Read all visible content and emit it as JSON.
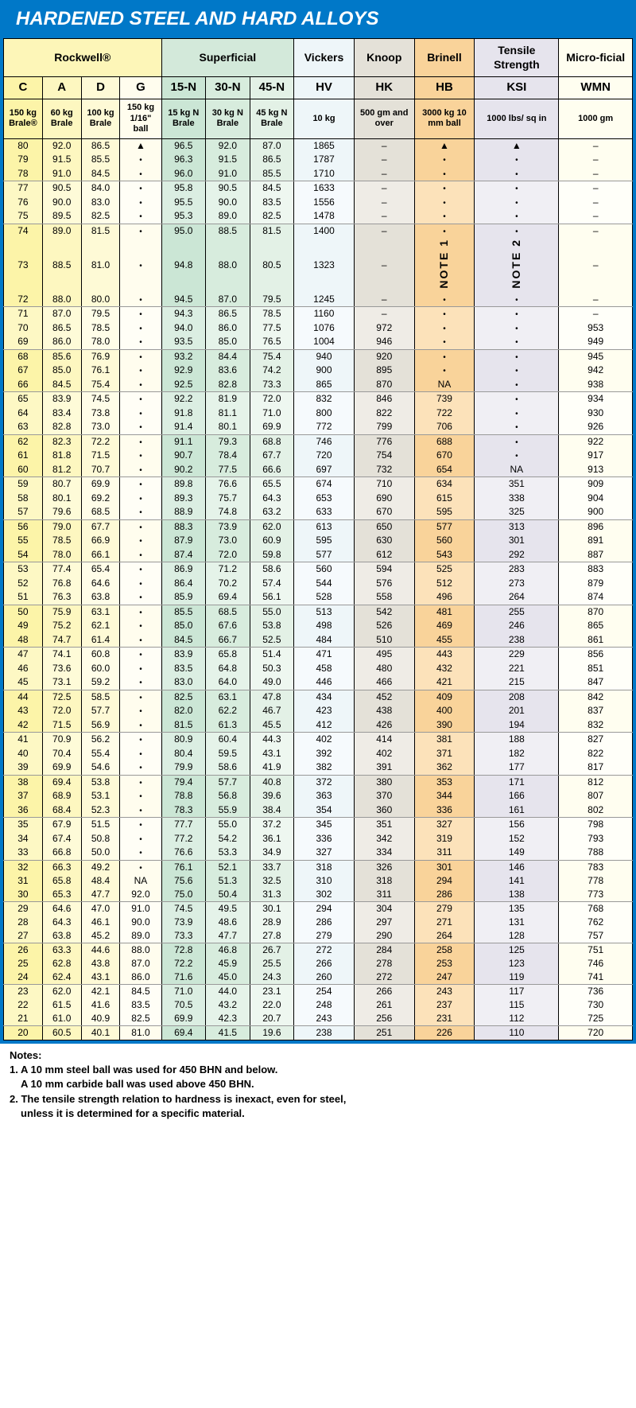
{
  "title": "HARDENED STEEL AND HARD ALLOYS",
  "group_headers": [
    "Rockwell®",
    "Superficial",
    "Vickers",
    "Knoop",
    "Brinell",
    "Tensile Strength",
    "Micro-ficial"
  ],
  "scale_headers": [
    "C",
    "A",
    "D",
    "G",
    "15-N",
    "30-N",
    "45-N",
    "HV",
    "HK",
    "HB",
    "KSI",
    "WMN"
  ],
  "load_headers": [
    "150 kg Brale®",
    "60 kg Brale",
    "100 kg Brale",
    "150 kg 1/16\" ball",
    "15 kg N Brale",
    "30 kg N Brale",
    "45 kg N Brale",
    "10 kg",
    "500 gm and over",
    "3000 kg 10 mm ball",
    "1000 lbs/ sq in",
    "1000 gm"
  ],
  "vertical_notes": {
    "hb": "NOTE 1",
    "ksi": "NOTE 2"
  },
  "hb_na": "NA",
  "ksi_na": "NA",
  "g_na": "NA",
  "rows": [
    [
      "80",
      "92.0",
      "86.5",
      "",
      "96.5",
      "92.0",
      "87.0",
      "1865",
      "–",
      "",
      "",
      "–"
    ],
    [
      "79",
      "91.5",
      "85.5",
      "",
      "96.3",
      "91.5",
      "86.5",
      "1787",
      "–",
      "",
      "",
      "–"
    ],
    [
      "78",
      "91.0",
      "84.5",
      "",
      "96.0",
      "91.0",
      "85.5",
      "1710",
      "–",
      "",
      "",
      "–"
    ],
    [
      "77",
      "90.5",
      "84.0",
      "",
      "95.8",
      "90.5",
      "84.5",
      "1633",
      "–",
      "",
      "",
      "–"
    ],
    [
      "76",
      "90.0",
      "83.0",
      "",
      "95.5",
      "90.0",
      "83.5",
      "1556",
      "–",
      "",
      "",
      "–"
    ],
    [
      "75",
      "89.5",
      "82.5",
      "",
      "95.3",
      "89.0",
      "82.5",
      "1478",
      "–",
      "",
      "",
      "–"
    ],
    [
      "74",
      "89.0",
      "81.5",
      "",
      "95.0",
      "88.5",
      "81.5",
      "1400",
      "–",
      "",
      "",
      "–"
    ],
    [
      "73",
      "88.5",
      "81.0",
      "",
      "94.8",
      "88.0",
      "80.5",
      "1323",
      "–",
      "",
      "",
      "–"
    ],
    [
      "72",
      "88.0",
      "80.0",
      "",
      "94.5",
      "87.0",
      "79.5",
      "1245",
      "–",
      "",
      "",
      "–"
    ],
    [
      "71",
      "87.0",
      "79.5",
      "",
      "94.3",
      "86.5",
      "78.5",
      "1160",
      "–",
      "",
      "",
      "–"
    ],
    [
      "70",
      "86.5",
      "78.5",
      "",
      "94.0",
      "86.0",
      "77.5",
      "1076",
      "972",
      "",
      "",
      "953"
    ],
    [
      "69",
      "86.0",
      "78.0",
      "",
      "93.5",
      "85.0",
      "76.5",
      "1004",
      "946",
      "",
      "",
      "949"
    ],
    [
      "68",
      "85.6",
      "76.9",
      "",
      "93.2",
      "84.4",
      "75.4",
      "940",
      "920",
      "",
      "",
      "945"
    ],
    [
      "67",
      "85.0",
      "76.1",
      "",
      "92.9",
      "83.6",
      "74.2",
      "900",
      "895",
      "",
      "",
      "942"
    ],
    [
      "66",
      "84.5",
      "75.4",
      "",
      "92.5",
      "82.8",
      "73.3",
      "865",
      "870",
      "NA",
      "",
      "938"
    ],
    [
      "65",
      "83.9",
      "74.5",
      "",
      "92.2",
      "81.9",
      "72.0",
      "832",
      "846",
      "739",
      "",
      "934"
    ],
    [
      "64",
      "83.4",
      "73.8",
      "",
      "91.8",
      "81.1",
      "71.0",
      "800",
      "822",
      "722",
      "",
      "930"
    ],
    [
      "63",
      "82.8",
      "73.0",
      "",
      "91.4",
      "80.1",
      "69.9",
      "772",
      "799",
      "706",
      "",
      "926"
    ],
    [
      "62",
      "82.3",
      "72.2",
      "",
      "91.1",
      "79.3",
      "68.8",
      "746",
      "776",
      "688",
      "",
      "922"
    ],
    [
      "61",
      "81.8",
      "71.5",
      "",
      "90.7",
      "78.4",
      "67.7",
      "720",
      "754",
      "670",
      "",
      "917"
    ],
    [
      "60",
      "81.2",
      "70.7",
      "",
      "90.2",
      "77.5",
      "66.6",
      "697",
      "732",
      "654",
      "NA",
      "913"
    ],
    [
      "59",
      "80.7",
      "69.9",
      "",
      "89.8",
      "76.6",
      "65.5",
      "674",
      "710",
      "634",
      "351",
      "909"
    ],
    [
      "58",
      "80.1",
      "69.2",
      "",
      "89.3",
      "75.7",
      "64.3",
      "653",
      "690",
      "615",
      "338",
      "904"
    ],
    [
      "57",
      "79.6",
      "68.5",
      "",
      "88.9",
      "74.8",
      "63.2",
      "633",
      "670",
      "595",
      "325",
      "900"
    ],
    [
      "56",
      "79.0",
      "67.7",
      "",
      "88.3",
      "73.9",
      "62.0",
      "613",
      "650",
      "577",
      "313",
      "896"
    ],
    [
      "55",
      "78.5",
      "66.9",
      "",
      "87.9",
      "73.0",
      "60.9",
      "595",
      "630",
      "560",
      "301",
      "891"
    ],
    [
      "54",
      "78.0",
      "66.1",
      "",
      "87.4",
      "72.0",
      "59.8",
      "577",
      "612",
      "543",
      "292",
      "887"
    ],
    [
      "53",
      "77.4",
      "65.4",
      "",
      "86.9",
      "71.2",
      "58.6",
      "560",
      "594",
      "525",
      "283",
      "883"
    ],
    [
      "52",
      "76.8",
      "64.6",
      "",
      "86.4",
      "70.2",
      "57.4",
      "544",
      "576",
      "512",
      "273",
      "879"
    ],
    [
      "51",
      "76.3",
      "63.8",
      "",
      "85.9",
      "69.4",
      "56.1",
      "528",
      "558",
      "496",
      "264",
      "874"
    ],
    [
      "50",
      "75.9",
      "63.1",
      "",
      "85.5",
      "68.5",
      "55.0",
      "513",
      "542",
      "481",
      "255",
      "870"
    ],
    [
      "49",
      "75.2",
      "62.1",
      "",
      "85.0",
      "67.6",
      "53.8",
      "498",
      "526",
      "469",
      "246",
      "865"
    ],
    [
      "48",
      "74.7",
      "61.4",
      "",
      "84.5",
      "66.7",
      "52.5",
      "484",
      "510",
      "455",
      "238",
      "861"
    ],
    [
      "47",
      "74.1",
      "60.8",
      "",
      "83.9",
      "65.8",
      "51.4",
      "471",
      "495",
      "443",
      "229",
      "856"
    ],
    [
      "46",
      "73.6",
      "60.0",
      "",
      "83.5",
      "64.8",
      "50.3",
      "458",
      "480",
      "432",
      "221",
      "851"
    ],
    [
      "45",
      "73.1",
      "59.2",
      "",
      "83.0",
      "64.0",
      "49.0",
      "446",
      "466",
      "421",
      "215",
      "847"
    ],
    [
      "44",
      "72.5",
      "58.5",
      "",
      "82.5",
      "63.1",
      "47.8",
      "434",
      "452",
      "409",
      "208",
      "842"
    ],
    [
      "43",
      "72.0",
      "57.7",
      "",
      "82.0",
      "62.2",
      "46.7",
      "423",
      "438",
      "400",
      "201",
      "837"
    ],
    [
      "42",
      "71.5",
      "56.9",
      "",
      "81.5",
      "61.3",
      "45.5",
      "412",
      "426",
      "390",
      "194",
      "832"
    ],
    [
      "41",
      "70.9",
      "56.2",
      "",
      "80.9",
      "60.4",
      "44.3",
      "402",
      "414",
      "381",
      "188",
      "827"
    ],
    [
      "40",
      "70.4",
      "55.4",
      "",
      "80.4",
      "59.5",
      "43.1",
      "392",
      "402",
      "371",
      "182",
      "822"
    ],
    [
      "39",
      "69.9",
      "54.6",
      "",
      "79.9",
      "58.6",
      "41.9",
      "382",
      "391",
      "362",
      "177",
      "817"
    ],
    [
      "38",
      "69.4",
      "53.8",
      "",
      "79.4",
      "57.7",
      "40.8",
      "372",
      "380",
      "353",
      "171",
      "812"
    ],
    [
      "37",
      "68.9",
      "53.1",
      "",
      "78.8",
      "56.8",
      "39.6",
      "363",
      "370",
      "344",
      "166",
      "807"
    ],
    [
      "36",
      "68.4",
      "52.3",
      "",
      "78.3",
      "55.9",
      "38.4",
      "354",
      "360",
      "336",
      "161",
      "802"
    ],
    [
      "35",
      "67.9",
      "51.5",
      "",
      "77.7",
      "55.0",
      "37.2",
      "345",
      "351",
      "327",
      "156",
      "798"
    ],
    [
      "34",
      "67.4",
      "50.8",
      "",
      "77.2",
      "54.2",
      "36.1",
      "336",
      "342",
      "319",
      "152",
      "793"
    ],
    [
      "33",
      "66.8",
      "50.0",
      "",
      "76.6",
      "53.3",
      "34.9",
      "327",
      "334",
      "311",
      "149",
      "788"
    ],
    [
      "32",
      "66.3",
      "49.2",
      "",
      "76.1",
      "52.1",
      "33.7",
      "318",
      "326",
      "301",
      "146",
      "783"
    ],
    [
      "31",
      "65.8",
      "48.4",
      "NA",
      "75.6",
      "51.3",
      "32.5",
      "310",
      "318",
      "294",
      "141",
      "778"
    ],
    [
      "30",
      "65.3",
      "47.7",
      "92.0",
      "75.0",
      "50.4",
      "31.3",
      "302",
      "311",
      "286",
      "138",
      "773"
    ],
    [
      "29",
      "64.6",
      "47.0",
      "91.0",
      "74.5",
      "49.5",
      "30.1",
      "294",
      "304",
      "279",
      "135",
      "768"
    ],
    [
      "28",
      "64.3",
      "46.1",
      "90.0",
      "73.9",
      "48.6",
      "28.9",
      "286",
      "297",
      "271",
      "131",
      "762"
    ],
    [
      "27",
      "63.8",
      "45.2",
      "89.0",
      "73.3",
      "47.7",
      "27.8",
      "279",
      "290",
      "264",
      "128",
      "757"
    ],
    [
      "26",
      "63.3",
      "44.6",
      "88.0",
      "72.8",
      "46.8",
      "26.7",
      "272",
      "284",
      "258",
      "125",
      "751"
    ],
    [
      "25",
      "62.8",
      "43.8",
      "87.0",
      "72.2",
      "45.9",
      "25.5",
      "266",
      "278",
      "253",
      "123",
      "746"
    ],
    [
      "24",
      "62.4",
      "43.1",
      "86.0",
      "71.6",
      "45.0",
      "24.3",
      "260",
      "272",
      "247",
      "119",
      "741"
    ],
    [
      "23",
      "62.0",
      "42.1",
      "84.5",
      "71.0",
      "44.0",
      "23.1",
      "254",
      "266",
      "243",
      "117",
      "736"
    ],
    [
      "22",
      "61.5",
      "41.6",
      "83.5",
      "70.5",
      "43.2",
      "22.0",
      "248",
      "261",
      "237",
      "115",
      "730"
    ],
    [
      "21",
      "61.0",
      "40.9",
      "82.5",
      "69.9",
      "42.3",
      "20.7",
      "243",
      "256",
      "231",
      "112",
      "725"
    ],
    [
      "20",
      "60.5",
      "40.1",
      "81.0",
      "69.4",
      "41.5",
      "19.6",
      "238",
      "251",
      "226",
      "110",
      "720"
    ]
  ],
  "notes_heading": "Notes:",
  "notes": [
    "1. A 10 mm steel ball was used for 450 BHN and below.",
    "   A 10 mm carbide ball was used above 450 BHN.",
    "2. The tensile strength relation to hardness is inexact, even for steel,",
    "   unless it is determined for a specific material."
  ],
  "colors": {
    "brand": "#0078c8",
    "cols": [
      "#fcf4a8",
      "#fdf7c0",
      "#fefad6",
      "#fffdee",
      "#cbe6d5",
      "#d7ecdd",
      "#e3f1e6",
      "#eef6f9",
      "#e4e1d8",
      "#f9d39a",
      "#e6e4ed",
      "#fffef0"
    ]
  },
  "col_widths_pct": [
    5.8,
    5.8,
    5.8,
    6.2,
    6.6,
    6.6,
    6.6,
    9.0,
    9.0,
    9.0,
    12.6,
    11.0
  ]
}
